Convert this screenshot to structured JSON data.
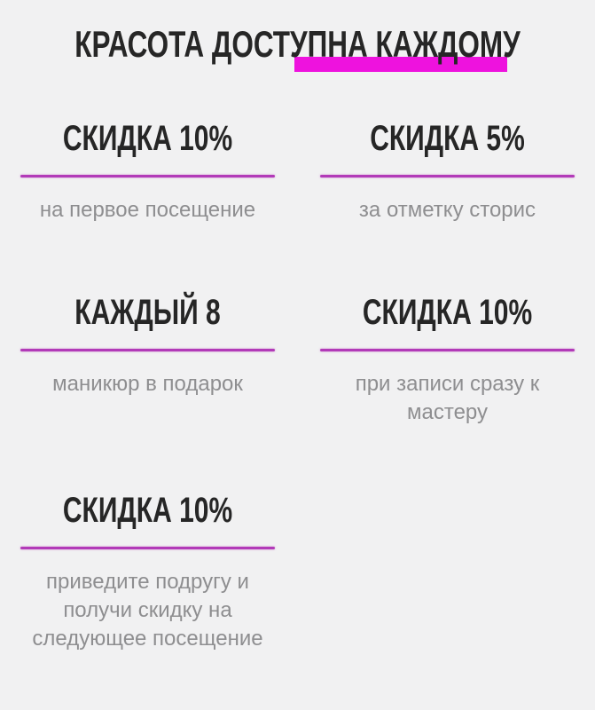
{
  "page": {
    "title": "КРАСОТА ДОСТУПНА КАЖДОМУ",
    "colors": {
      "background": "#f1f1f2",
      "heading_text": "#262626",
      "description_text": "#8e8e90",
      "title_highlight": "#ee12de",
      "divider_line": "#b23ab8"
    }
  },
  "offers": [
    {
      "title": "СКИДКА 10%",
      "description": "на первое посещение"
    },
    {
      "title": "СКИДКА 5%",
      "description": "за отметку сторис"
    },
    {
      "title": "КАЖДЫЙ 8",
      "description": "маникюр в подарок"
    },
    {
      "title": "СКИДКА 10%",
      "description": "при записи сразу к\nмастеру"
    },
    {
      "title": "СКИДКА 10%",
      "description": "приведите подругу и\nполучи скидку на\nследующее посещение"
    }
  ]
}
